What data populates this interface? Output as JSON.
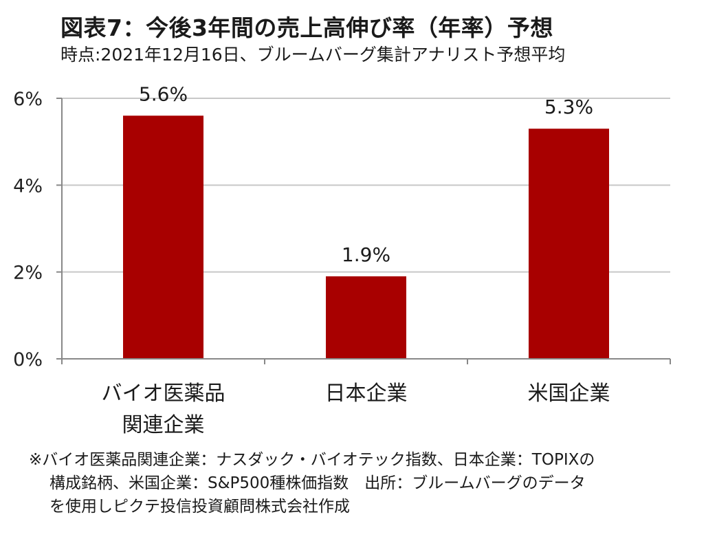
{
  "header": {
    "title": "図表7：今後3年間の売上高伸び率（年率）予想",
    "subtitle": "時点:2021年12月16日、ブルームバーグ集計アナリスト予想平均"
  },
  "chart_data": {
    "type": "bar",
    "categories": [
      [
        "バイオ医薬品",
        "関連企業"
      ],
      [
        "日本企業"
      ],
      [
        "米国企業"
      ]
    ],
    "values": [
      5.6,
      1.9,
      5.3
    ],
    "value_labels": [
      "5.6%",
      "1.9%",
      "5.3%"
    ],
    "y_ticks": [
      "0%",
      "2%",
      "4%",
      "6%"
    ],
    "ylim": [
      0,
      6
    ],
    "grid": true,
    "bar_color": "#a80000",
    "legend": "none"
  },
  "note": {
    "line1": "※バイオ医薬品関連企業：ナスダック・バイオテック指数、日本企業：TOPIXの",
    "line2": "構成銘柄、米国企業：S&P500種株価指数　出所：ブルームバーグのデータ",
    "line3": "を使用しピクテ投信投資顧問株式会社作成"
  }
}
